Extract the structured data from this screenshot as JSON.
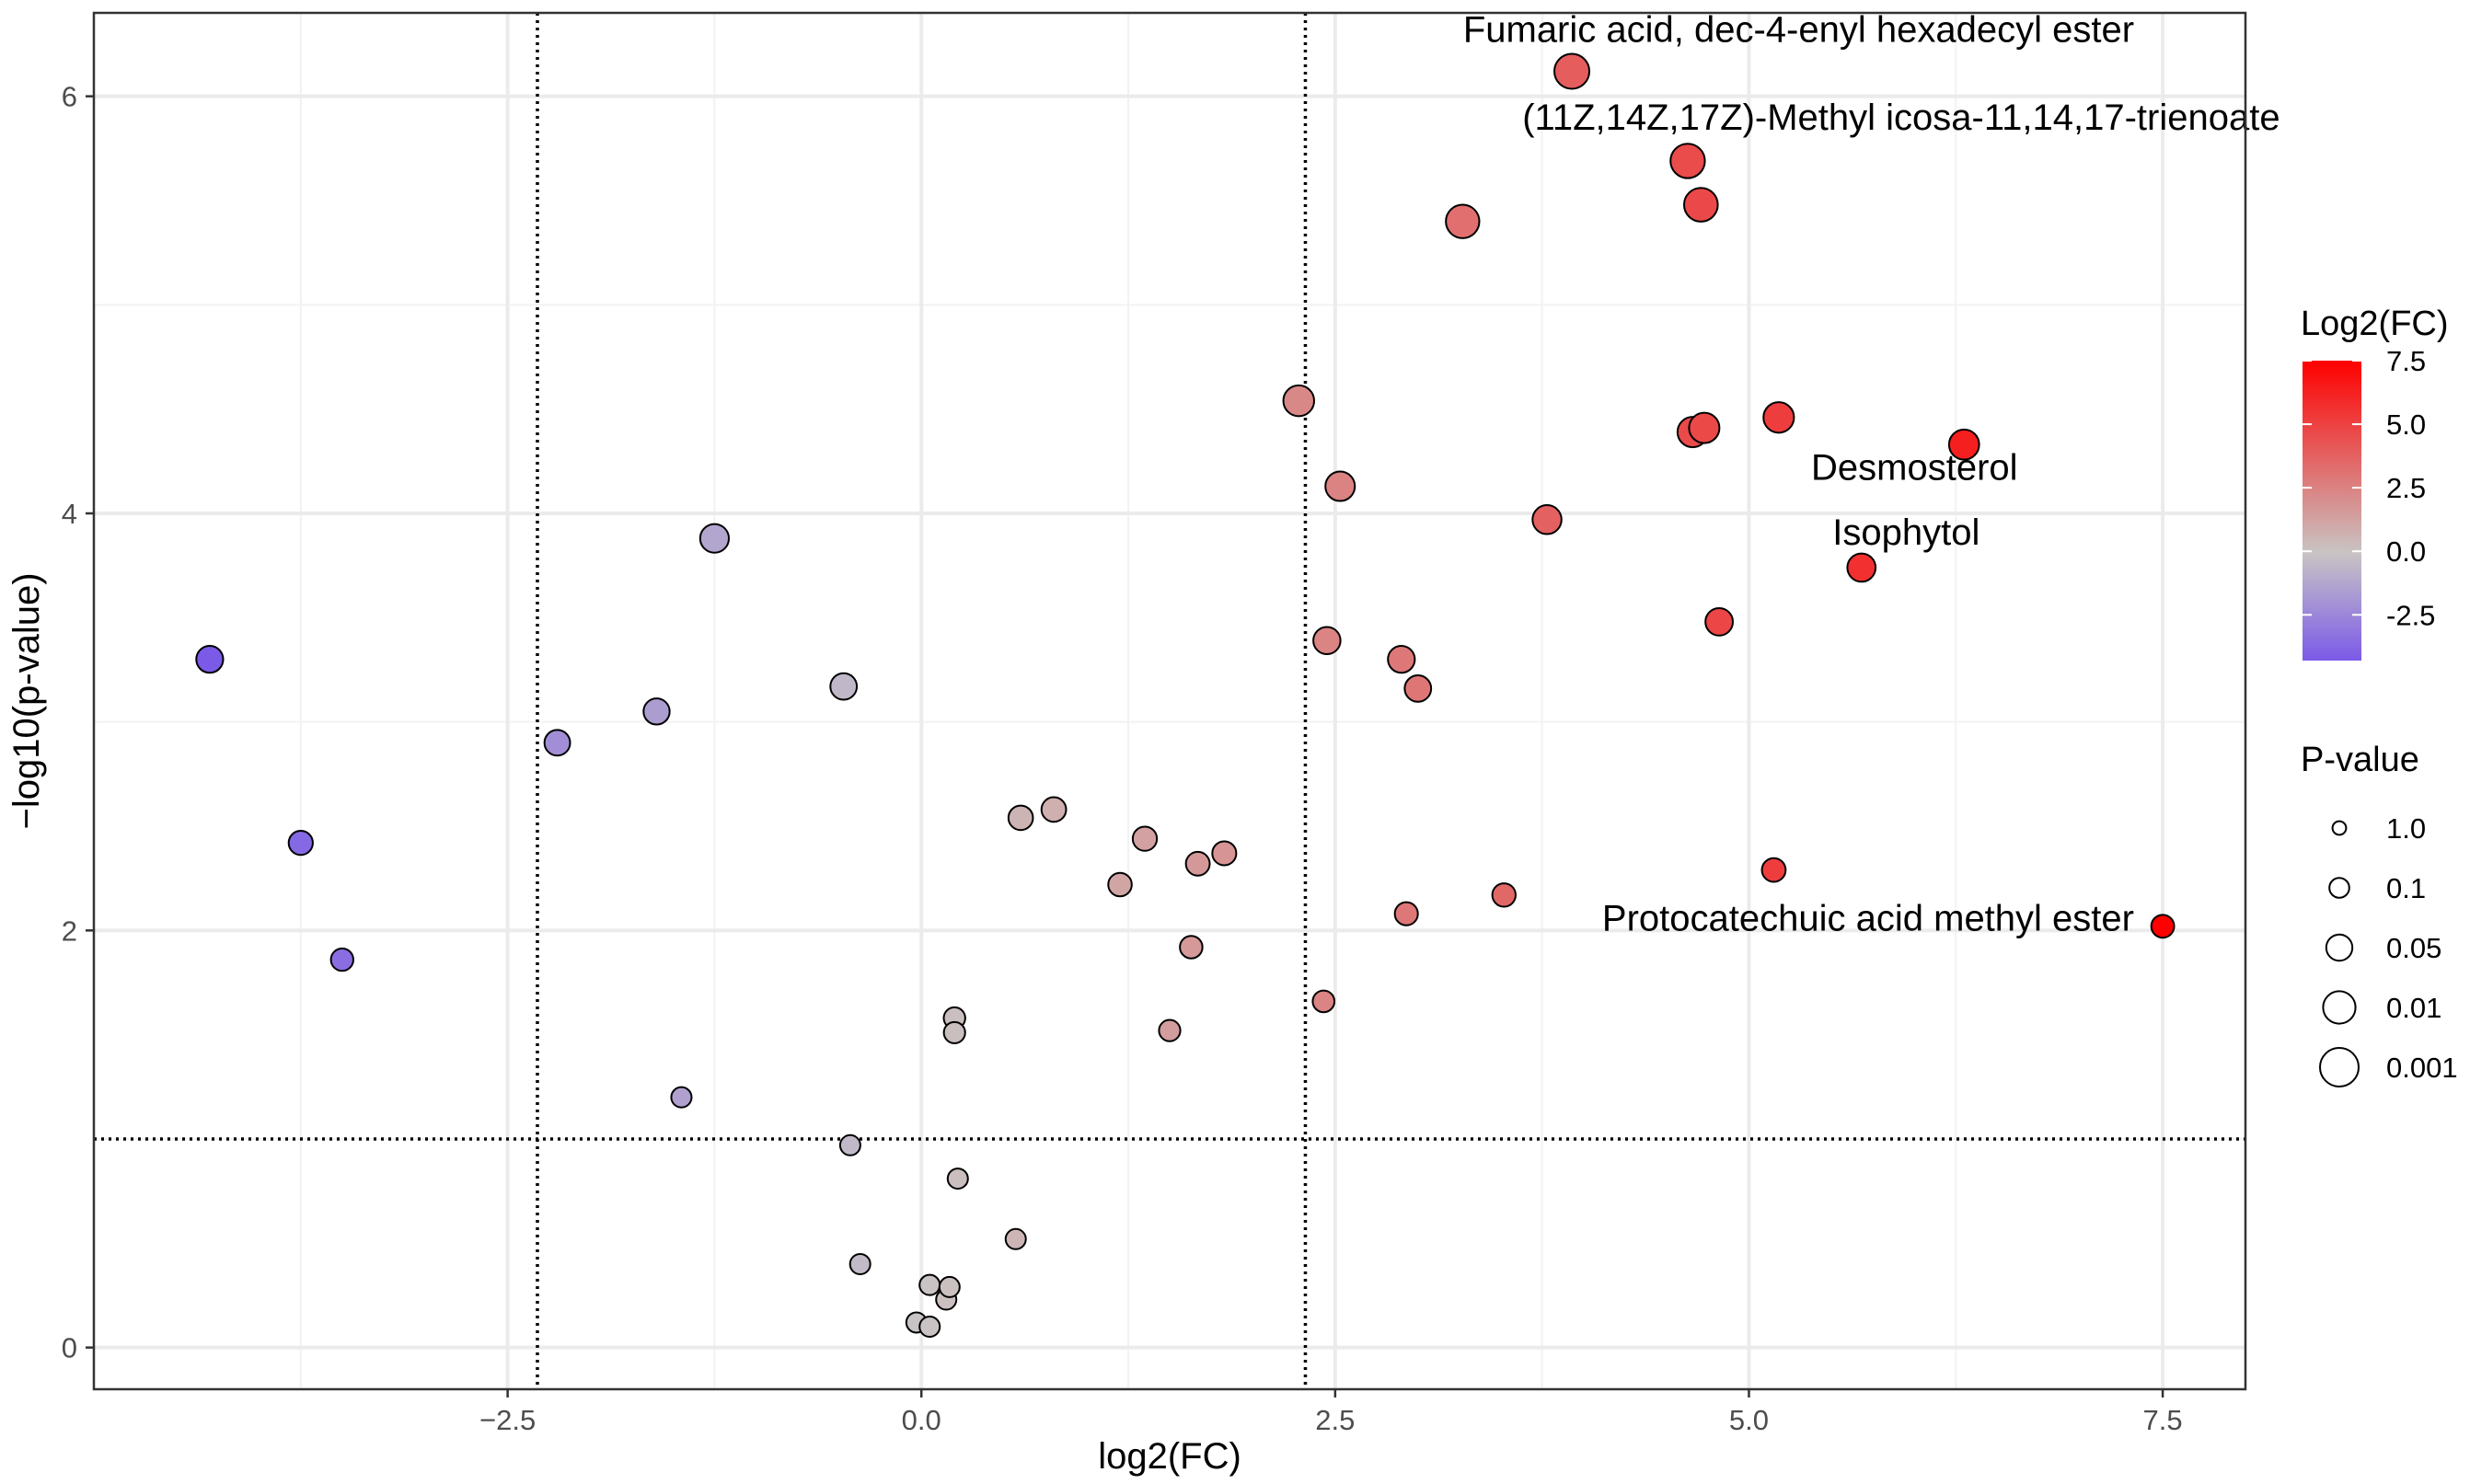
{
  "chart_data": {
    "type": "scatter",
    "subtype": "volcano",
    "title": "",
    "xlabel": "log2(FC)",
    "ylabel": "−log10(p-value)",
    "xlim": [
      -5.0,
      8.0
    ],
    "ylim": [
      -0.2,
      6.4
    ],
    "xticks": [
      -2.5,
      0.0,
      2.5,
      5.0,
      7.5
    ],
    "xtick_labels": [
      "−2.5",
      "0.0",
      "2.5",
      "5.0",
      "7.5"
    ],
    "yticks": [
      0,
      2,
      4,
      6
    ],
    "ytick_labels": [
      "0",
      "2",
      "4",
      "6"
    ],
    "grid": true,
    "threshold_lines": {
      "vertical": [
        -2.32,
        2.32
      ],
      "horizontal": [
        1.0
      ],
      "style": "dotted"
    },
    "colors": {
      "low": "#7b5ae8",
      "mid": "#c9c4c4",
      "high": "#ff0000",
      "grid": "#ebebeb",
      "point_stroke": "#000000"
    },
    "points": [
      {
        "x": -4.3,
        "y": 3.3
      },
      {
        "x": -3.75,
        "y": 2.42
      },
      {
        "x": -3.5,
        "y": 1.86
      },
      {
        "x": -2.2,
        "y": 2.9
      },
      {
        "x": -1.6,
        "y": 3.05
      },
      {
        "x": -1.45,
        "y": 1.2
      },
      {
        "x": -1.25,
        "y": 3.88
      },
      {
        "x": -0.47,
        "y": 3.17
      },
      {
        "x": -0.43,
        "y": 0.97
      },
      {
        "x": -0.37,
        "y": 0.4
      },
      {
        "x": -0.03,
        "y": 0.12
      },
      {
        "x": 0.05,
        "y": 0.3
      },
      {
        "x": 0.05,
        "y": 0.1
      },
      {
        "x": 0.15,
        "y": 0.23
      },
      {
        "x": 0.17,
        "y": 0.29
      },
      {
        "x": 0.2,
        "y": 1.58
      },
      {
        "x": 0.2,
        "y": 1.51
      },
      {
        "x": 0.22,
        "y": 0.81
      },
      {
        "x": 0.57,
        "y": 0.52
      },
      {
        "x": 0.6,
        "y": 2.54
      },
      {
        "x": 0.8,
        "y": 2.58
      },
      {
        "x": 1.2,
        "y": 2.22
      },
      {
        "x": 1.35,
        "y": 2.44
      },
      {
        "x": 1.5,
        "y": 1.52
      },
      {
        "x": 1.63,
        "y": 1.92
      },
      {
        "x": 1.67,
        "y": 2.32
      },
      {
        "x": 1.83,
        "y": 2.37
      },
      {
        "x": 2.28,
        "y": 4.54
      },
      {
        "x": 2.43,
        "y": 1.66
      },
      {
        "x": 2.45,
        "y": 3.39
      },
      {
        "x": 2.53,
        "y": 4.13
      },
      {
        "x": 2.9,
        "y": 3.3
      },
      {
        "x": 2.93,
        "y": 2.08
      },
      {
        "x": 3.0,
        "y": 3.16
      },
      {
        "x": 3.27,
        "y": 5.4
      },
      {
        "x": 3.52,
        "y": 2.17
      },
      {
        "x": 3.78,
        "y": 3.97
      },
      {
        "x": 3.93,
        "y": 6.12,
        "label": "Fumaric acid, dec-4-enyl hexadecyl ester"
      },
      {
        "x": 4.63,
        "y": 5.69,
        "label": "(11Z,14Z,17Z)-Methyl icosa-11,14,17-trienoate"
      },
      {
        "x": 4.66,
        "y": 4.39
      },
      {
        "x": 4.71,
        "y": 5.48
      },
      {
        "x": 4.73,
        "y": 4.41
      },
      {
        "x": 4.82,
        "y": 3.48
      },
      {
        "x": 5.15,
        "y": 2.29
      },
      {
        "x": 5.18,
        "y": 4.46
      },
      {
        "x": 5.68,
        "y": 3.74,
        "label": "Isophytol"
      },
      {
        "x": 6.3,
        "y": 4.33,
        "label": "Desmosterol"
      },
      {
        "x": 7.5,
        "y": 2.02,
        "label": "Protocatechuic acid methyl ester"
      }
    ],
    "labels": [
      {
        "text": "Fumaric acid, dec-4-enyl hexadecyl ester",
        "x": 5.3,
        "y": 6.26,
        "anchor": "middle"
      },
      {
        "text": "(11Z,14Z,17Z)-Methyl icosa-11,14,17-trienoate",
        "x": 5.92,
        "y": 5.84,
        "anchor": "middle"
      },
      {
        "text": "Desmosterol",
        "x": 6.0,
        "y": 4.16,
        "anchor": "middle"
      },
      {
        "text": "Isophytol",
        "x": 5.95,
        "y": 3.85,
        "anchor": "middle"
      },
      {
        "text": "Protocatechuic acid methyl ester",
        "x": 5.72,
        "y": 2.0,
        "anchor": "middle"
      }
    ],
    "legend_color": {
      "title": "Log2(FC)",
      "range": [
        -4.3,
        7.5
      ],
      "breaks": [
        7.5,
        5.0,
        2.5,
        0.0,
        -2.5
      ],
      "break_labels": [
        "7.5",
        "5.0",
        "2.5",
        "0.0",
        "-2.5"
      ],
      "position": "right"
    },
    "legend_size": {
      "title": "P-value",
      "entries": [
        {
          "label": "1.0",
          "size": 1
        },
        {
          "label": "0.1",
          "size": 2
        },
        {
          "label": "0.05",
          "size": 3
        },
        {
          "label": "0.01",
          "size": 4
        },
        {
          "label": "0.001",
          "size": 5
        }
      ],
      "position": "right"
    }
  }
}
